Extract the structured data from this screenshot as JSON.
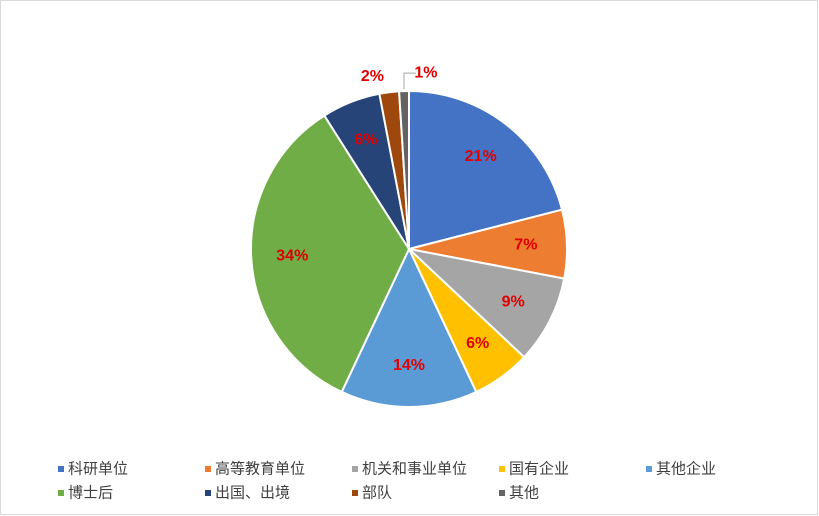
{
  "chart_data": {
    "type": "pie",
    "categories": [
      "科研单位",
      "高等教育单位",
      "机关和事业单位",
      "国有企业",
      "其他企业",
      "博士后",
      "出国、出境",
      "部队",
      "其他"
    ],
    "values": [
      21,
      7,
      9,
      6,
      14,
      34,
      6,
      2,
      1
    ],
    "value_labels": [
      "21%",
      "7%",
      "9%",
      "6%",
      "14%",
      "34%",
      "6%",
      "2%",
      "1%"
    ],
    "colors": [
      "#4472c4",
      "#ed7d31",
      "#a5a5a5",
      "#ffc000",
      "#5b9bd5",
      "#70ad47",
      "#264478",
      "#9e480e",
      "#636363"
    ],
    "legend": "bottom"
  }
}
